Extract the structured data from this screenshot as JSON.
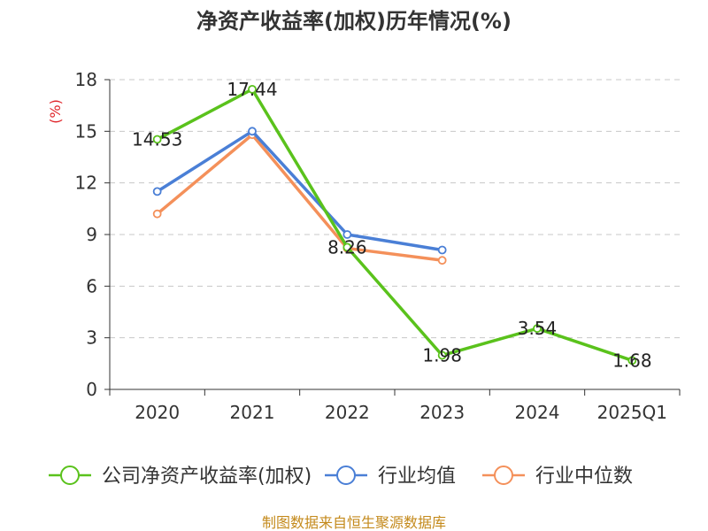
{
  "chart_data": {
    "type": "line",
    "title": "净资产收益率(加权)历年情况(%)",
    "ylabel": "(%)",
    "xlabel": "",
    "categories": [
      "2020",
      "2021",
      "2022",
      "2023",
      "2024",
      "2025Q1"
    ],
    "ylim": [
      0,
      18
    ],
    "yticks": [
      0,
      3,
      6,
      9,
      12,
      15,
      18
    ],
    "grid": true,
    "legend_position": "bottom",
    "series": [
      {
        "name": "公司净资产收益率(加权)",
        "color": "#5ac21c",
        "values": [
          14.53,
          17.44,
          8.26,
          1.98,
          3.54,
          1.68
        ],
        "labels": [
          "14.53",
          "17.44",
          "8.26",
          "1.98",
          "3.54",
          "1.68"
        ]
      },
      {
        "name": "行业均值",
        "color": "#4a7fd6",
        "values": [
          11.5,
          15.0,
          9.0,
          8.1,
          null,
          null
        ]
      },
      {
        "name": "行业中位数",
        "color": "#f4905a",
        "values": [
          10.2,
          14.8,
          8.2,
          7.5,
          null,
          null
        ]
      }
    ]
  },
  "source": "制图数据来自恒生聚源数据库"
}
